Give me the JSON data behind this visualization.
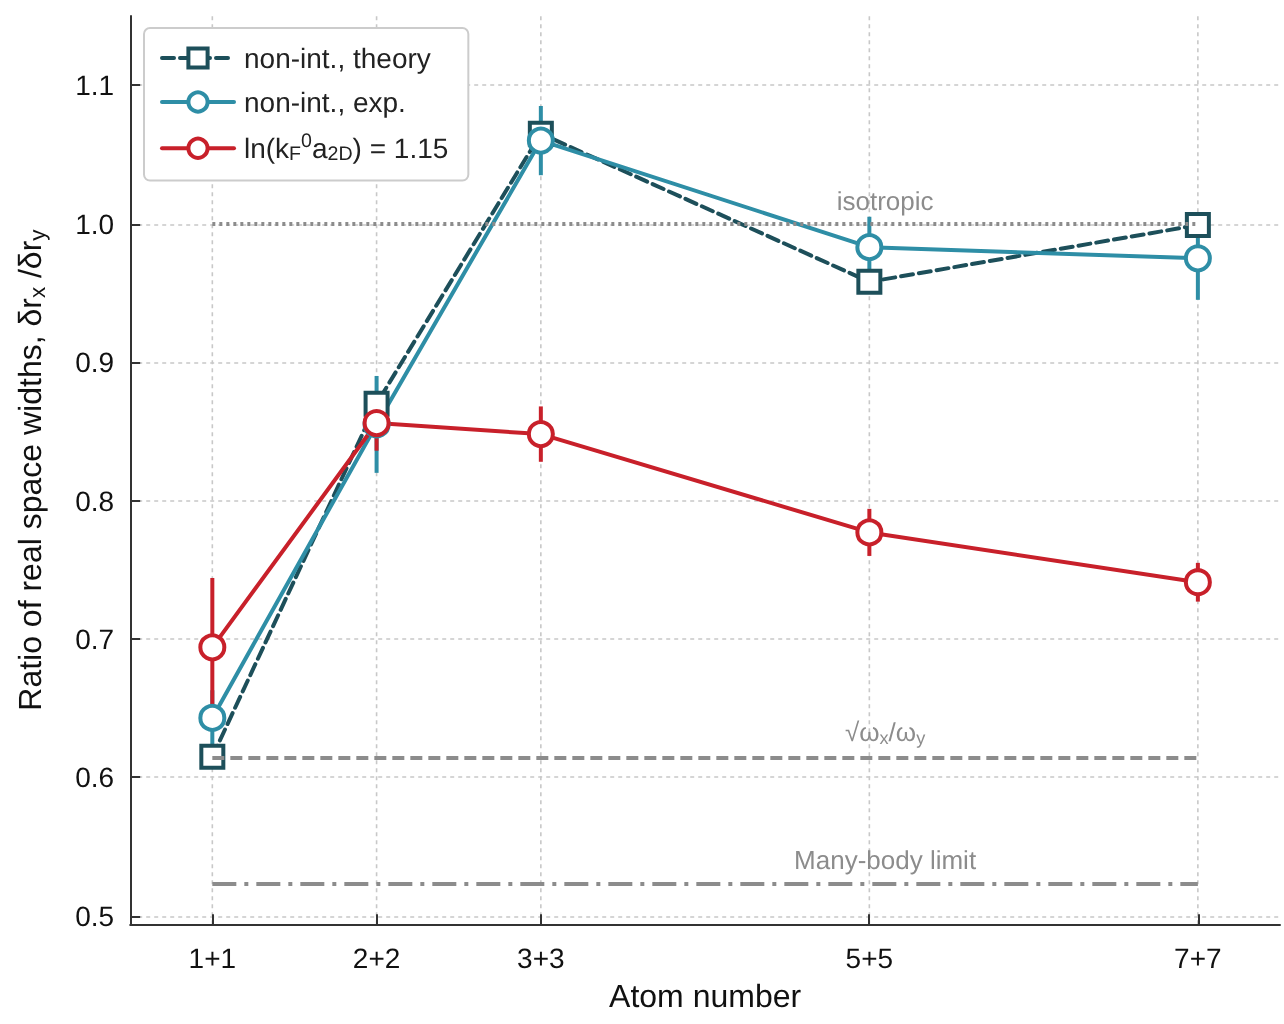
{
  "chart_data": {
    "type": "line",
    "xlabel": "Atom number",
    "ylabel": "Ratio of real space widths, δr$_{x}$ /δr$_{y}$",
    "categories": [
      "1+1",
      "2+2",
      "3+3",
      null,
      "5+5",
      null,
      "7+7"
    ],
    "ylim": [
      0.494,
      1.15
    ],
    "yticks": [
      0.5,
      0.6,
      0.7,
      0.8,
      0.9,
      {
        "value": 1.0,
        "label": "1.0"
      },
      1.1
    ],
    "grid": true,
    "legend": "top left",
    "series": [
      {
        "name": "non-int., theory",
        "color": "#1d4f5a",
        "marker": "square",
        "line_style": "dashed",
        "values": [
          0.615,
          0.87,
          1.065,
          null,
          0.958,
          null,
          0.999
        ]
      },
      {
        "name": "non-int., exp.",
        "color": "#2e8ea6",
        "marker": "circle",
        "line_style": "solid",
        "values": [
          0.643,
          0.855,
          1.06,
          null,
          0.983,
          null,
          0.975
        ],
        "errors": [
          0.02,
          0.035,
          0.025,
          null,
          0.022,
          null,
          0.03
        ]
      },
      {
        "name": "ln(k$_{F}$$^{0}$a$_{2D}$) = 1.15",
        "color": "#c8202a",
        "marker": "circle",
        "line_style": "solid",
        "values": [
          0.694,
          0.856,
          0.848,
          null,
          0.777,
          null,
          0.741
        ],
        "errors": [
          0.05,
          0.02,
          0.02,
          null,
          0.017,
          null,
          0.014
        ]
      }
    ],
    "ref_lines": [
      {
        "axis": "y",
        "value": 1.0,
        "label": "isotropic",
        "color": "#8c8c8c",
        "line_style": "dotted"
      },
      {
        "axis": "y",
        "value": 0.615,
        "label": "√ω$_{x}$/ω$_{y}$",
        "color": "#8c8c8c",
        "line_style": "dashed"
      },
      {
        "axis": "y",
        "value": 0.524,
        "label": "Many-body limit",
        "color": "#8c8c8c",
        "line_style": "dashdot"
      }
    ]
  }
}
